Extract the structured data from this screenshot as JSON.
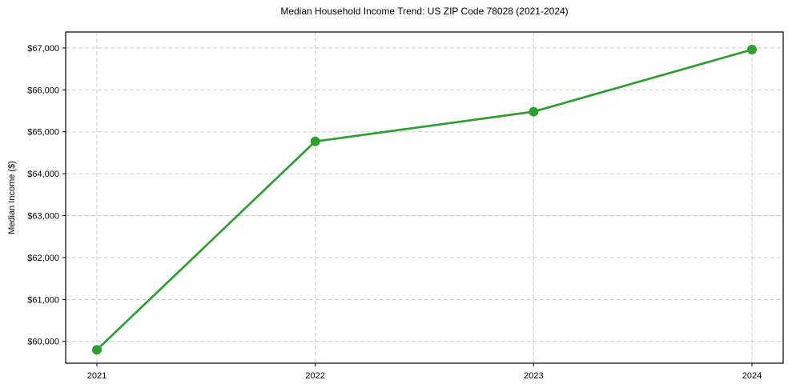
{
  "chart_data": {
    "type": "line",
    "title": "Median Household Income Trend: US ZIP Code 78028 (2021-2024)",
    "xlabel": "",
    "ylabel": "Median Income ($)",
    "x": [
      2021,
      2022,
      2023,
      2024
    ],
    "values": [
      59800,
      64770,
      65480,
      66960
    ],
    "xticks": [
      2021,
      2022,
      2023,
      2024
    ],
    "xtick_labels": [
      "2021",
      "2022",
      "2023",
      "2024"
    ],
    "yticks": [
      60000,
      61000,
      62000,
      63000,
      64000,
      65000,
      66000,
      67000
    ],
    "ytick_labels": [
      "$60,000",
      "$61,000",
      "$62,000",
      "$63,000",
      "$64,000",
      "$65,000",
      "$66,000",
      "$67,000"
    ],
    "xlim": [
      2020.857,
      2024.143
    ],
    "ylim": [
      59480,
      67380
    ],
    "grid": true,
    "grid_style": "dashed",
    "legend": "none",
    "marker": "circle",
    "colors": {
      "line": "#2ca02c",
      "marker": "#2ca02c",
      "grid": "#cccccc",
      "axis": "#000000",
      "text": "#000000"
    }
  }
}
